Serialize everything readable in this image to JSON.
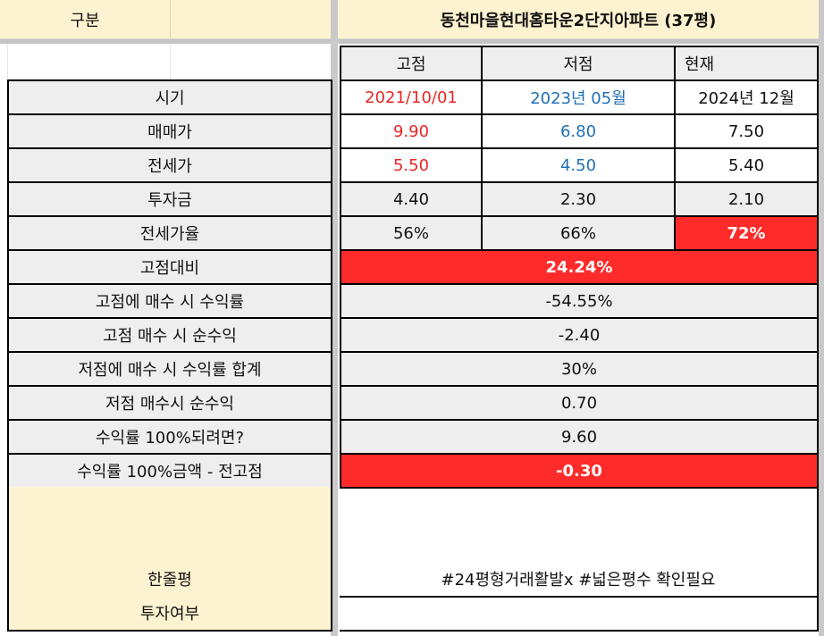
{
  "header": {
    "left_label": "구분",
    "title": "동천마을현대홈타운2단지아파트 (37평)"
  },
  "columns": [
    "고점",
    "저점",
    "현재"
  ],
  "rows": [
    {
      "label": "시기",
      "values": [
        "2021/10/01",
        "2023년 05월",
        "2024년 12월"
      ]
    },
    {
      "label": "매매가",
      "values": [
        "9.90",
        "6.80",
        "7.50"
      ]
    },
    {
      "label": "전세가",
      "values": [
        "5.50",
        "4.50",
        "5.40"
      ]
    },
    {
      "label": "투자금",
      "values": [
        "4.40",
        "2.30",
        "2.10"
      ]
    },
    {
      "label": "전세가율",
      "values": [
        "56%",
        "66%",
        "72%"
      ]
    }
  ],
  "summary": [
    {
      "label": "고점대비",
      "value": "24.24%"
    },
    {
      "label": "고점에 매수 시 수익률",
      "value": "-54.55%"
    },
    {
      "label": "고점 매수 시 순수익",
      "value": "-2.40"
    },
    {
      "label": "저점에 매수 시 수익률 합계",
      "value": "30%"
    },
    {
      "label": "저점 매수시 순수익",
      "value": "0.70"
    },
    {
      "label": "수익률 100%되려면?",
      "value": "9.60"
    },
    {
      "label": "수익률 100%금액 - 전고점",
      "value": "-0.30"
    }
  ],
  "review": {
    "label": "한줄평",
    "value": "#24평형거래활발x #넓은평수 확인필요"
  },
  "invest": {
    "label": "투자여부",
    "value": ""
  },
  "colors": {
    "highlight_red": "#ff2b2b",
    "text_red": "#e62626",
    "text_blue": "#1f6fb5",
    "header_beige": "#fdf3d0"
  }
}
